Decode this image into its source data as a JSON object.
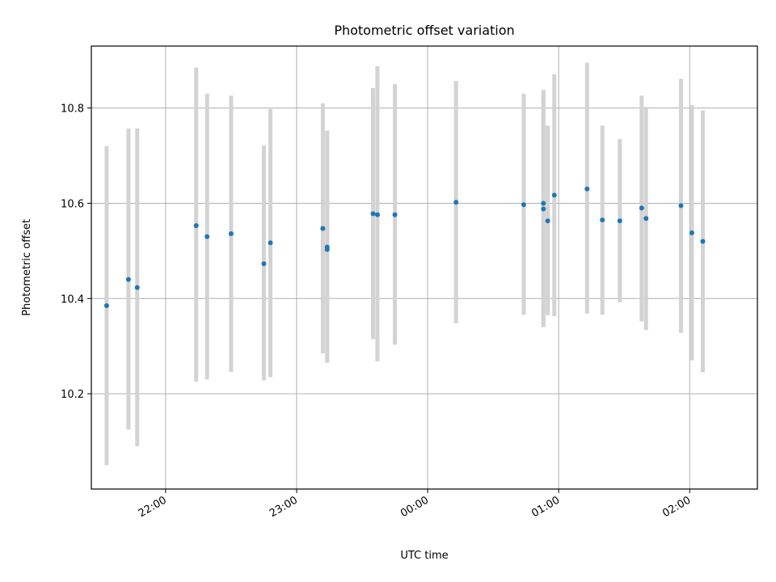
{
  "chart_data": {
    "type": "scatter",
    "title": "Photometric offset variation",
    "xlabel": "UTC time",
    "ylabel": "Photometric offset",
    "x_is_time": true,
    "xlim": [
      "21:26",
      "02:31"
    ],
    "ylim": [
      10.0,
      10.93
    ],
    "xticks": [
      "22:00",
      "23:00",
      "00:00",
      "01:00",
      "02:00"
    ],
    "yticks": [
      10.2,
      10.4,
      10.6,
      10.8
    ],
    "grid": true,
    "colors": {
      "point": "#1f77b4",
      "errorbar": "#d3d3d3",
      "grid": "#b0b0b0"
    },
    "points": [
      {
        "t": "21:33",
        "y": 10.385,
        "lo": 10.05,
        "hi": 10.72
      },
      {
        "t": "21:43",
        "y": 10.44,
        "lo": 10.125,
        "hi": 10.757
      },
      {
        "t": "21:47",
        "y": 10.423,
        "lo": 10.09,
        "hi": 10.757
      },
      {
        "t": "22:14",
        "y": 10.553,
        "lo": 10.225,
        "hi": 10.885
      },
      {
        "t": "22:19",
        "y": 10.53,
        "lo": 10.23,
        "hi": 10.83
      },
      {
        "t": "22:30",
        "y": 10.536,
        "lo": 10.246,
        "hi": 10.826
      },
      {
        "t": "22:45",
        "y": 10.473,
        "lo": 10.228,
        "hi": 10.722
      },
      {
        "t": "22:48",
        "y": 10.517,
        "lo": 10.235,
        "hi": 10.798
      },
      {
        "t": "23:12",
        "y": 10.547,
        "lo": 10.285,
        "hi": 10.81
      },
      {
        "t": "23:14",
        "y": 10.503,
        "lo": 10.265,
        "hi": 10.752
      },
      {
        "t": "23:14",
        "y": 10.508,
        "lo": 10.265,
        "hi": 10.752
      },
      {
        "t": "23:35",
        "y": 10.578,
        "lo": 10.315,
        "hi": 10.842
      },
      {
        "t": "23:37",
        "y": 10.576,
        "lo": 10.268,
        "hi": 10.888
      },
      {
        "t": "23:45",
        "y": 10.576,
        "lo": 10.303,
        "hi": 10.85
      },
      {
        "t": "00:13",
        "y": 10.602,
        "lo": 10.348,
        "hi": 10.857
      },
      {
        "t": "00:44",
        "y": 10.597,
        "lo": 10.366,
        "hi": 10.83
      },
      {
        "t": "00:53",
        "y": 10.588,
        "lo": 10.34,
        "hi": 10.838
      },
      {
        "t": "00:53",
        "y": 10.6,
        "lo": 10.34,
        "hi": 10.838
      },
      {
        "t": "00:55",
        "y": 10.563,
        "lo": 10.365,
        "hi": 10.763
      },
      {
        "t": "00:58",
        "y": 10.617,
        "lo": 10.363,
        "hi": 10.871
      },
      {
        "t": "01:13",
        "y": 10.63,
        "lo": 10.368,
        "hi": 10.895
      },
      {
        "t": "01:20",
        "y": 10.565,
        "lo": 10.366,
        "hi": 10.763
      },
      {
        "t": "01:28",
        "y": 10.563,
        "lo": 10.392,
        "hi": 10.735
      },
      {
        "t": "01:38",
        "y": 10.59,
        "lo": 10.352,
        "hi": 10.826
      },
      {
        "t": "01:40",
        "y": 10.568,
        "lo": 10.334,
        "hi": 10.802
      },
      {
        "t": "01:56",
        "y": 10.595,
        "lo": 10.328,
        "hi": 10.861
      },
      {
        "t": "02:01",
        "y": 10.538,
        "lo": 10.27,
        "hi": 10.806
      },
      {
        "t": "02:06",
        "y": 10.52,
        "lo": 10.245,
        "hi": 10.795
      }
    ]
  }
}
